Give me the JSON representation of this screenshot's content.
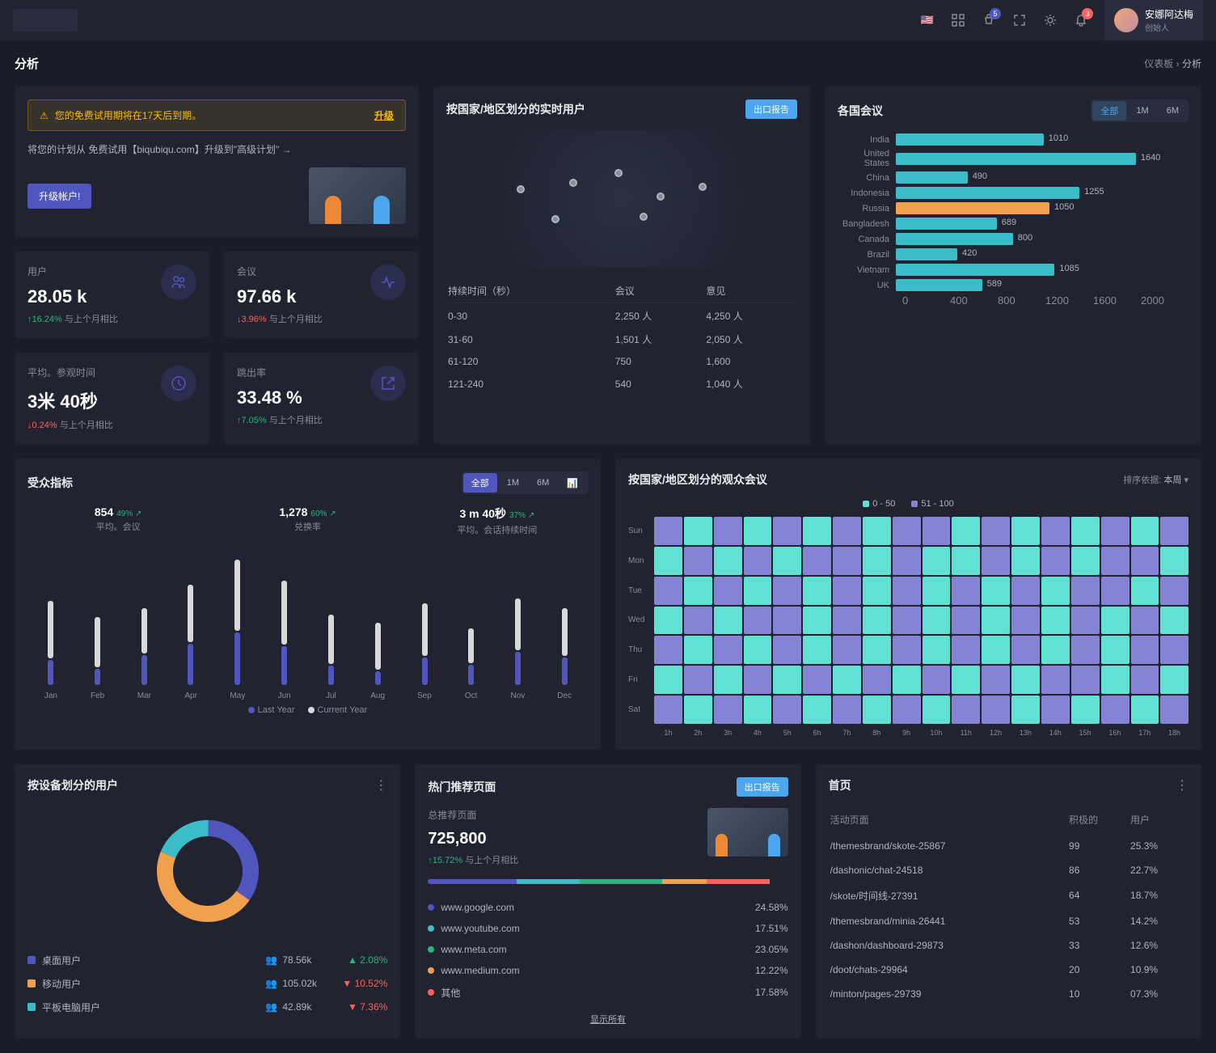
{
  "header": {
    "user_name": "安娜阿达梅",
    "user_role": "创始人",
    "cart_badge": "5",
    "bell_badge": "3"
  },
  "page": {
    "title": "分析",
    "crumb_parent": "仪表板",
    "crumb_sep": "›",
    "crumb_current": "分析"
  },
  "alert": {
    "icon": "⚠",
    "text": "您的免费试用期将在17天后到期。",
    "link": "升级"
  },
  "promo": {
    "text": "将您的计划从 免费试用【biqubiqu.com】升级到\"高级计划\" →",
    "button": "升级帐户!"
  },
  "stats": [
    {
      "label": "用户",
      "value": "28.05 k",
      "pct": "↑16.24%",
      "pct_dir": "up",
      "sub": "与上个月相比",
      "icon": "users"
    },
    {
      "label": "会议",
      "value": "97.66 k",
      "pct": "↓3.96%",
      "pct_dir": "down",
      "sub": "与上个月相比",
      "icon": "activity"
    },
    {
      "label": "平均。参观时间",
      "value": "3米 40秒",
      "pct": "↓0.24%",
      "pct_dir": "down",
      "sub": "与上个月相比",
      "icon": "clock"
    },
    {
      "label": "跳出率",
      "value": "33.48 %",
      "pct": "↑7.05%",
      "pct_dir": "up",
      "sub": "与上个月相比",
      "icon": "external"
    }
  ],
  "map_card": {
    "title": "按国家/地区划分的实时用户",
    "button": "出口报告",
    "table_headers": [
      "持续时间（秒）",
      "会议",
      "意见"
    ],
    "rows": [
      [
        "0-30",
        "2,250 人",
        "4,250 人"
      ],
      [
        "31-60",
        "1,501 人",
        "2,050 人"
      ],
      [
        "61-120",
        "750",
        "1,600"
      ],
      [
        "121-240",
        "540",
        "1,040 人"
      ]
    ]
  },
  "countries": {
    "title": "各国会议",
    "tabs": [
      "全部",
      "1M",
      "6M"
    ],
    "active_tab": 0,
    "max": 2000,
    "ticks": [
      "0",
      "400",
      "800",
      "1200",
      "1600",
      "2000"
    ],
    "data": [
      {
        "label": "India",
        "value": 1010,
        "color": "#3cbcc8"
      },
      {
        "label": "United States",
        "value": 1640,
        "color": "#3cbcc8"
      },
      {
        "label": "China",
        "value": 490,
        "color": "#3cbcc8"
      },
      {
        "label": "Indonesia",
        "value": 1255,
        "color": "#3cbcc8"
      },
      {
        "label": "Russia",
        "value": 1050,
        "color": "#f1a14e"
      },
      {
        "label": "Bangladesh",
        "value": 689,
        "color": "#3cbcc8"
      },
      {
        "label": "Canada",
        "value": 800,
        "color": "#3cbcc8"
      },
      {
        "label": "Brazil",
        "value": 420,
        "color": "#3cbcc8"
      },
      {
        "label": "Vietnam",
        "value": 1085,
        "color": "#3cbcc8"
      },
      {
        "label": "UK",
        "value": 589,
        "color": "#3cbcc8"
      }
    ]
  },
  "audience": {
    "title": "受众指标",
    "tabs": [
      "全部",
      "1M",
      "6M"
    ],
    "active_tab": 0,
    "metrics": [
      {
        "val": "854",
        "pct": "49%",
        "dir": "up",
        "label": "平均。会议"
      },
      {
        "val": "1,278",
        "pct": "60%",
        "dir": "up",
        "label": "兑换率"
      },
      {
        "val": "3 m 40秒",
        "pct": "37%",
        "dir": "up",
        "label": "平均。会话持续时间"
      }
    ],
    "months": [
      "Jan",
      "Feb",
      "Mar",
      "Apr",
      "May",
      "Jun",
      "Jul",
      "Aug",
      "Sep",
      "Oct",
      "Nov",
      "Dec"
    ],
    "legend": [
      "Last Year",
      "Current Year"
    ],
    "last_year": [
      60,
      48,
      55,
      72,
      90,
      75,
      50,
      44,
      58,
      40,
      62,
      55
    ],
    "curr_year": [
      18,
      12,
      22,
      30,
      38,
      28,
      14,
      10,
      20,
      15,
      24,
      20
    ]
  },
  "heatmap": {
    "title": "按国家/地区划分的观众会议",
    "sort_label": "排序依据:",
    "sort_value": "本周",
    "legend": [
      {
        "label": "0 - 50",
        "color": "#60e1d4"
      },
      {
        "label": "51 - 100",
        "color": "#8583d6"
      }
    ],
    "days": [
      "Sun",
      "Mon",
      "Tue",
      "Wed",
      "Thu",
      "Fri",
      "Sat"
    ],
    "hours": [
      "1h",
      "2h",
      "3h",
      "4h",
      "5h",
      "6h",
      "7h",
      "8h",
      "9h",
      "10h",
      "11h",
      "12h",
      "13h",
      "14h",
      "15h",
      "16h",
      "17h",
      "18h"
    ],
    "colors": {
      "a": "#60e1d4",
      "b": "#8583d6"
    },
    "grid": [
      "bababababbabababab",
      "abababbabaabababba",
      "babababababababbab",
      "ababbababababababa",
      "bababababababababb",
      "abababababababbaba",
      "babababababbababab"
    ]
  },
  "devices": {
    "title": "按设备划分的用户",
    "donut": [
      {
        "label": "桌面用户",
        "value": 78.56,
        "display": "78.56k",
        "pct": "2.08%",
        "dir": "up",
        "color": "#5156be"
      },
      {
        "label": "移动用户",
        "value": 105.02,
        "display": "105.02k",
        "pct": "10.52%",
        "dir": "down",
        "color": "#f1a14e"
      },
      {
        "label": "平板电脑用户",
        "value": 42.89,
        "display": "42.89k",
        "pct": "7.36%",
        "dir": "down",
        "color": "#3cbcc8"
      }
    ]
  },
  "referrals": {
    "title": "热门推荐页面",
    "button": "出口报告",
    "total_label": "总推荐页面",
    "total_value": "725,800",
    "total_pct": "↑15.72%",
    "total_sub": "与上个月相比",
    "show_all": "显示所有",
    "colors": [
      "#5156be",
      "#3cbcc8",
      "#2ab57d",
      "#f1a14e",
      "#fd625e"
    ],
    "items": [
      {
        "name": "www.google.com",
        "pct": "24.58%",
        "w": 24.58
      },
      {
        "name": "www.youtube.com",
        "pct": "17.51%",
        "w": 17.51
      },
      {
        "name": "www.meta.com",
        "pct": "23.05%",
        "w": 23.05
      },
      {
        "name": "www.medium.com",
        "pct": "12.22%",
        "w": 12.22
      },
      {
        "name": "其他",
        "pct": "17.58%",
        "w": 17.58
      }
    ]
  },
  "top_pages": {
    "title": "首页",
    "headers": [
      "活动页面",
      "积极的",
      "用户"
    ],
    "rows": [
      [
        "/themesbrand/skote-25867",
        "99",
        "25.3%"
      ],
      [
        "/dashonic/chat-24518",
        "86",
        "22.7%"
      ],
      [
        "/skote/时间线-27391",
        "64",
        "18.7%"
      ],
      [
        "/themesbrand/minia-26441",
        "53",
        "14.2%"
      ],
      [
        "/dashon/dashboard-29873",
        "33",
        "12.6%"
      ],
      [
        "/doot/chats-29964",
        "20",
        "10.9%"
      ],
      [
        "/minton/pages-29739",
        "10",
        "07.3%"
      ]
    ]
  }
}
